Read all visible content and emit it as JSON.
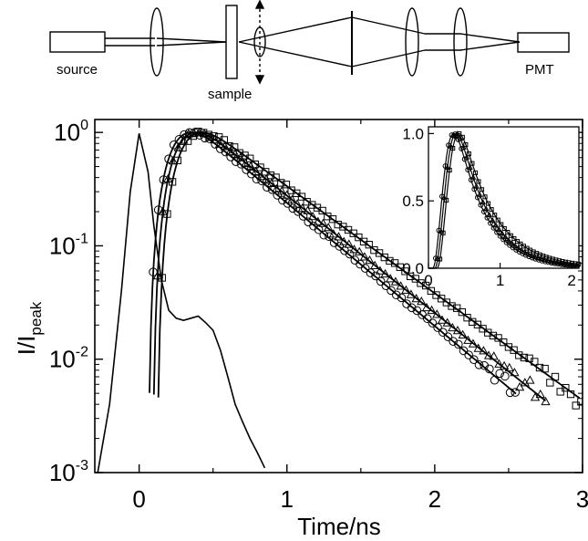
{
  "setup": {
    "labels": {
      "source": "source",
      "sample": "sample",
      "detector": "PMT"
    }
  },
  "chart_data": [
    {
      "type": "line",
      "title": "",
      "xlabel": "Time/ns",
      "ylabel_main": "I/I",
      "ylabel_sub": "peak",
      "xlim": [
        -0.3,
        3.0
      ],
      "ylim": [
        0.001,
        1.3
      ],
      "yscale": "log",
      "xticks": [
        "0",
        "1",
        "2",
        "3"
      ],
      "yticks": [
        {
          "base": "10",
          "exp": "0"
        },
        {
          "base": "10",
          "exp": "-1"
        },
        {
          "base": "10",
          "exp": "-2"
        },
        {
          "base": "10",
          "exp": "-3"
        }
      ],
      "grid": false,
      "legend": "none",
      "instrument_response": {
        "x": [
          -0.28,
          -0.2,
          -0.12,
          -0.06,
          0.0,
          0.06,
          0.1,
          0.15,
          0.2,
          0.25,
          0.3,
          0.35,
          0.4,
          0.45,
          0.5,
          0.55,
          0.6,
          0.65,
          0.7,
          0.75,
          0.8,
          0.85
        ],
        "y": [
          0.001,
          0.004,
          0.04,
          0.3,
          0.98,
          0.45,
          0.15,
          0.05,
          0.027,
          0.023,
          0.022,
          0.023,
          0.024,
          0.021,
          0.018,
          0.012,
          0.007,
          0.004,
          0.0028,
          0.002,
          0.0015,
          0.0011
        ]
      },
      "series": [
        {
          "marker": "circle",
          "t_rise": 0.06,
          "t_peak": 0.48,
          "tau": 0.4,
          "t_end": 2.55
        },
        {
          "marker": "triangle",
          "t_rise": 0.09,
          "t_peak": 0.52,
          "tau": 0.42,
          "t_end": 2.75
        },
        {
          "marker": "square",
          "t_rise": 0.12,
          "t_peak": 0.62,
          "tau": 0.46,
          "t_end": 2.98
        }
      ],
      "inset": {
        "type": "line",
        "yscale": "linear",
        "xlim": [
          0,
          2.1
        ],
        "ylim": [
          0,
          1.05
        ],
        "xticks": [
          "0",
          "1",
          "2"
        ],
        "yticks": [
          "0.0",
          "0.5",
          "1.0"
        ]
      }
    }
  ]
}
